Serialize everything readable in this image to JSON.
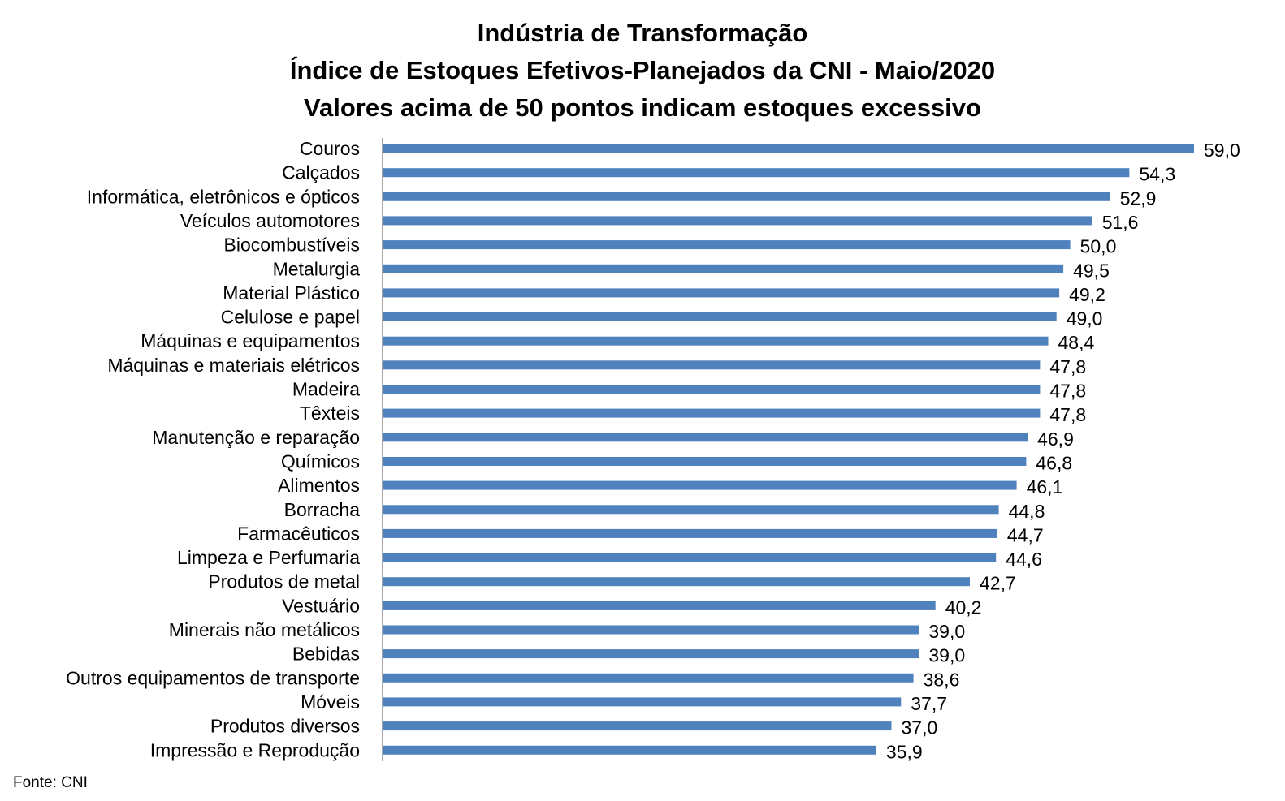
{
  "chart_data": {
    "type": "bar",
    "orientation": "horizontal",
    "title_lines": [
      "Indústria de Transformação",
      "Índice de Estoques Efetivos-Planejados da CNI - Maio/2020",
      "Valores acima de 50 pontos indicam estoques excessivo"
    ],
    "categories": [
      "Couros",
      "Calçados",
      "Informática, eletrônicos e ópticos",
      "Veículos automotores",
      "Biocombustíveis",
      "Metalurgia",
      "Material Plástico",
      "Celulose e papel",
      "Máquinas e equipamentos",
      "Máquinas e materiais elétricos",
      "Madeira",
      "Têxteis",
      "Manutenção e reparação",
      "Químicos",
      "Alimentos",
      "Borracha",
      "Farmacêuticos",
      "Limpeza e Perfumaria",
      "Produtos de metal",
      "Vestuário",
      "Minerais não metálicos",
      "Bebidas",
      "Outros equipamentos de transporte",
      "Móveis",
      "Produtos diversos",
      "Impressão e Reprodução"
    ],
    "values": [
      59.0,
      54.3,
      52.9,
      51.6,
      50.0,
      49.5,
      49.2,
      49.0,
      48.4,
      47.8,
      47.8,
      47.8,
      46.9,
      46.8,
      46.1,
      44.8,
      44.7,
      44.6,
      42.7,
      40.2,
      39.0,
      39.0,
      38.6,
      37.7,
      37.0,
      35.9
    ],
    "value_labels": [
      "59,0",
      "54,3",
      "52,9",
      "51,6",
      "50,0",
      "49,5",
      "49,2",
      "49,0",
      "48,4",
      "47,8",
      "47,8",
      "47,8",
      "46,9",
      "46,8",
      "46,1",
      "44,8",
      "44,7",
      "44,6",
      "42,7",
      "40,2",
      "39,0",
      "39,0",
      "38,6",
      "37,7",
      "37,0",
      "35,9"
    ],
    "bar_color": "#4F81BD",
    "xlim": [
      0,
      59
    ],
    "grid": false,
    "legend": false,
    "source": "Fonte: CNI"
  }
}
